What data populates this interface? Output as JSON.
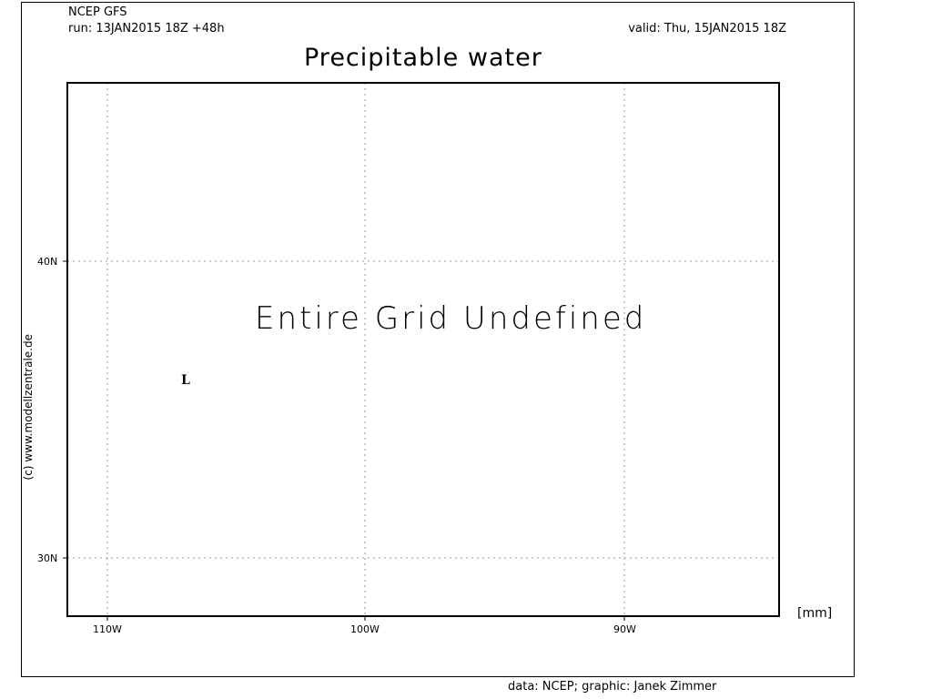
{
  "header": {
    "model": "NCEP GFS",
    "run": "run: 13JAN2015 18Z +48h",
    "valid": "valid: Thu, 15JAN2015 18Z"
  },
  "title": "Precipitable water",
  "map": {
    "message": "Entire Grid Undefined",
    "low_marker": "L",
    "lat_labels": [
      "40N",
      "30N"
    ],
    "lon_labels": [
      "110W",
      "100W",
      "90W"
    ],
    "unit": "[mm]",
    "gridlines": "dotted",
    "colors": {
      "frame": "#000000",
      "grid": "#9a9a9a",
      "background": "#ffffff"
    }
  },
  "copyright": "(c) www.modellzentrale.de",
  "credits": "data: NCEP; graphic: Janek Zimmer"
}
